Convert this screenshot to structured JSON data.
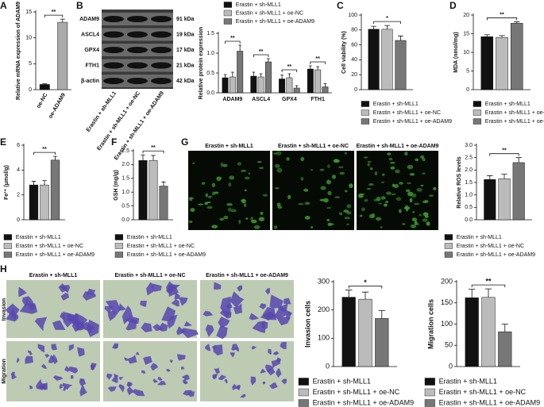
{
  "panel_letters": [
    "A",
    "B",
    "C",
    "D",
    "E",
    "F",
    "G",
    "H"
  ],
  "blot": {
    "proteins": [
      "ADAM9",
      "ASCL4",
      "GPX4",
      "FTH1",
      "β-actin"
    ],
    "sizes": [
      "91 kDa",
      "19 kDa",
      "17 kDa",
      "21 kDa",
      "42 kDa"
    ],
    "lanes": [
      "Erastin + sh-MLL1",
      "Erastin + sh-MLL1 + oe-NC",
      "Erastin + sh-MLL1 + oe-ADAM9"
    ]
  },
  "ros_images": {
    "columns": [
      "Erastin + sh-MLL1",
      "Erastin + sh-MLL1 + oe-NC",
      "Erastin + sh-MLL1 + oe-ADAM9"
    ]
  },
  "transwell_images": {
    "columns": [
      "Erastin + sh-MLL1",
      "Erastin + sh-MLL1 + oe-NC",
      "Erastin + sh-MLL1 + oe-ADAM9"
    ],
    "rows": [
      "Invasion",
      "Migration"
    ]
  },
  "chart_data": [
    {
      "type": "bar",
      "y_label": "Relative mRNA expression of ADAM9",
      "categories": [
        "oe-NC",
        "oe-ADAM9"
      ],
      "values": [
        1.0,
        13.0
      ],
      "errors": [
        0.15,
        0.6
      ],
      "colors": [
        "#111111",
        "#aaaaaa"
      ],
      "ylim": [
        0,
        15
      ],
      "yticks": [
        0,
        5,
        10,
        15
      ],
      "annotations": [
        "**"
      ]
    },
    {
      "type": "bar",
      "y_label": "Relative protein expression",
      "categories": [
        "ADAM9",
        "ASCL4",
        "GPX4",
        "FTH1"
      ],
      "series": [
        {
          "name": "Erastin + sh-MLL1",
          "color": "#111111",
          "values": [
            0.38,
            0.42,
            0.35,
            0.6
          ],
          "errors": [
            0.08,
            0.1,
            0.1,
            0.08
          ]
        },
        {
          "name": "Erastin + sh-MLL1 + oe-NC",
          "color": "#bbbbbb",
          "values": [
            0.4,
            0.4,
            0.38,
            0.58
          ],
          "errors": [
            0.12,
            0.08,
            0.1,
            0.08
          ]
        },
        {
          "name": "Erastin + sh-MLL1 + oe-ADAM9",
          "color": "#777777",
          "values": [
            1.05,
            0.78,
            0.12,
            0.15
          ],
          "errors": [
            0.15,
            0.08,
            0.06,
            0.08
          ]
        }
      ],
      "ylim": [
        0,
        1.5
      ],
      "yticks": [
        {
          "value": 0,
          "label": "0.0"
        },
        0.5,
        {
          "value": 1,
          "label": "1.0"
        },
        1.5
      ],
      "annotations": [
        "**",
        "**",
        "**",
        "**"
      ]
    },
    {
      "type": "bar",
      "y_label": "Cell viability (%)",
      "series": [
        {
          "name": "Erastin + sh-MLL1",
          "color": "#111111",
          "values": [
            81
          ],
          "errors": [
            4
          ]
        },
        {
          "name": "Erastin + sh-MLL1 + oe-NC",
          "color": "#bbbbbb",
          "values": [
            81
          ],
          "errors": [
            5
          ]
        },
        {
          "name": "Erastin + sh-MLL1 + oe-ADAM9",
          "color": "#777777",
          "values": [
            66
          ],
          "errors": [
            6
          ]
        }
      ],
      "ylim": [
        0,
        100
      ],
      "yticks": [
        0,
        20,
        40,
        60,
        80,
        100
      ],
      "annotations": [
        "*"
      ]
    },
    {
      "type": "bar",
      "y_label": "MDA (nmol/mg)",
      "series": [
        {
          "name": "Erastin + sh-MLL1",
          "color": "#111111",
          "values": [
            14.2
          ],
          "errors": [
            0.5
          ]
        },
        {
          "name": "Erastin + sh-MLL1 + oe-NC",
          "color": "#bbbbbb",
          "values": [
            14.0
          ],
          "errors": [
            0.5
          ]
        },
        {
          "name": "Erastin + sh-MLL1 + oe-ADAM9",
          "color": "#777777",
          "values": [
            17.8
          ],
          "errors": [
            0.4
          ]
        }
      ],
      "ylim": [
        0,
        20
      ],
      "yticks": [
        0,
        5,
        10,
        15,
        20
      ],
      "annotations": [
        "**"
      ]
    },
    {
      "type": "bar",
      "y_label": "Fe²⁺ (μmol/g)",
      "series": [
        {
          "name": "Erastin + sh-MLL1",
          "color": "#111111",
          "values": [
            2.8
          ],
          "errors": [
            0.3
          ]
        },
        {
          "name": "Erastin + sh-MLL1 + oe-NC",
          "color": "#bbbbbb",
          "values": [
            2.8
          ],
          "errors": [
            0.35
          ]
        },
        {
          "name": "Erastin + sh-MLL1 + oe-ADAM9",
          "color": "#777777",
          "values": [
            4.8
          ],
          "errors": [
            0.3
          ]
        }
      ],
      "ylim": [
        0,
        6
      ],
      "yticks": [
        0,
        2,
        4,
        6
      ],
      "annotations": [
        "**"
      ]
    },
    {
      "type": "bar",
      "y_label": "GSH (mg/g)",
      "series": [
        {
          "name": "Erastin + sh-MLL1",
          "color": "#111111",
          "values": [
            2.15
          ],
          "errors": [
            0.2
          ]
        },
        {
          "name": "Erastin + sh-MLL1 + oe-NC",
          "color": "#bbbbbb",
          "values": [
            2.15
          ],
          "errors": [
            0.18
          ]
        },
        {
          "name": "Erastin + sh-MLL1 + oe-ADAM9",
          "color": "#777777",
          "values": [
            1.22
          ],
          "errors": [
            0.15
          ]
        }
      ],
      "ylim": [
        0,
        2.5
      ],
      "yticks": [
        {
          "value": 0,
          "label": "0.0"
        },
        0.5,
        {
          "value": 1,
          "label": "1.0"
        },
        1.5,
        {
          "value": 2,
          "label": "2.0"
        },
        2.5
      ],
      "annotations": [
        "**"
      ]
    },
    {
      "type": "bar",
      "y_label": "Relative ROS levels",
      "series": [
        {
          "name": "Erastin + sh-MLL1",
          "color": "#111111",
          "values": [
            1.62
          ],
          "errors": [
            0.15
          ]
        },
        {
          "name": "Erastin + sh-MLL1 + oe-NC",
          "color": "#bbbbbb",
          "values": [
            1.65
          ],
          "errors": [
            0.18
          ]
        },
        {
          "name": "Erastin + sh-MLL1 + oe-ADAM9",
          "color": "#777777",
          "values": [
            2.3
          ],
          "errors": [
            0.2
          ]
        }
      ],
      "ylim": [
        0,
        3
      ],
      "yticks": [
        {
          "value": 0,
          "label": "0.0"
        },
        0.5,
        {
          "value": 1,
          "label": "1.0"
        },
        1.5,
        {
          "value": 2,
          "label": "2.0"
        },
        2.5,
        {
          "value": 3,
          "label": "3.0"
        }
      ],
      "annotations": [
        "**"
      ]
    },
    {
      "type": "bar",
      "y_label": "Invasion cells",
      "series": [
        {
          "name": "Erastin + sh-MLL1",
          "color": "#111111",
          "values": [
            245
          ],
          "errors": [
            25
          ]
        },
        {
          "name": "Erastin + sh-MLL1 + oe-NC",
          "color": "#bbbbbb",
          "values": [
            238
          ],
          "errors": [
            25
          ]
        },
        {
          "name": "Erastin + sh-MLL1 + oe-ADAM9",
          "color": "#777777",
          "values": [
            170
          ],
          "errors": [
            28
          ]
        }
      ],
      "ylim": [
        0,
        300
      ],
      "yticks": [
        0,
        100,
        200,
        300
      ],
      "annotations": [
        "*"
      ]
    },
    {
      "type": "bar",
      "y_label": "Migration cells",
      "series": [
        {
          "name": "Erastin + sh-MLL1",
          "color": "#111111",
          "values": [
            162
          ],
          "errors": [
            20
          ]
        },
        {
          "name": "Erastin + sh-MLL1 + oe-NC",
          "color": "#bbbbbb",
          "values": [
            163
          ],
          "errors": [
            20
          ]
        },
        {
          "name": "Erastin + sh-MLL1 + oe-ADAM9",
          "color": "#777777",
          "values": [
            82
          ],
          "errors": [
            18
          ]
        }
      ],
      "ylim": [
        0,
        200
      ],
      "yticks": [
        0,
        50,
        100,
        150,
        200
      ],
      "annotations": [
        "**"
      ]
    }
  ]
}
